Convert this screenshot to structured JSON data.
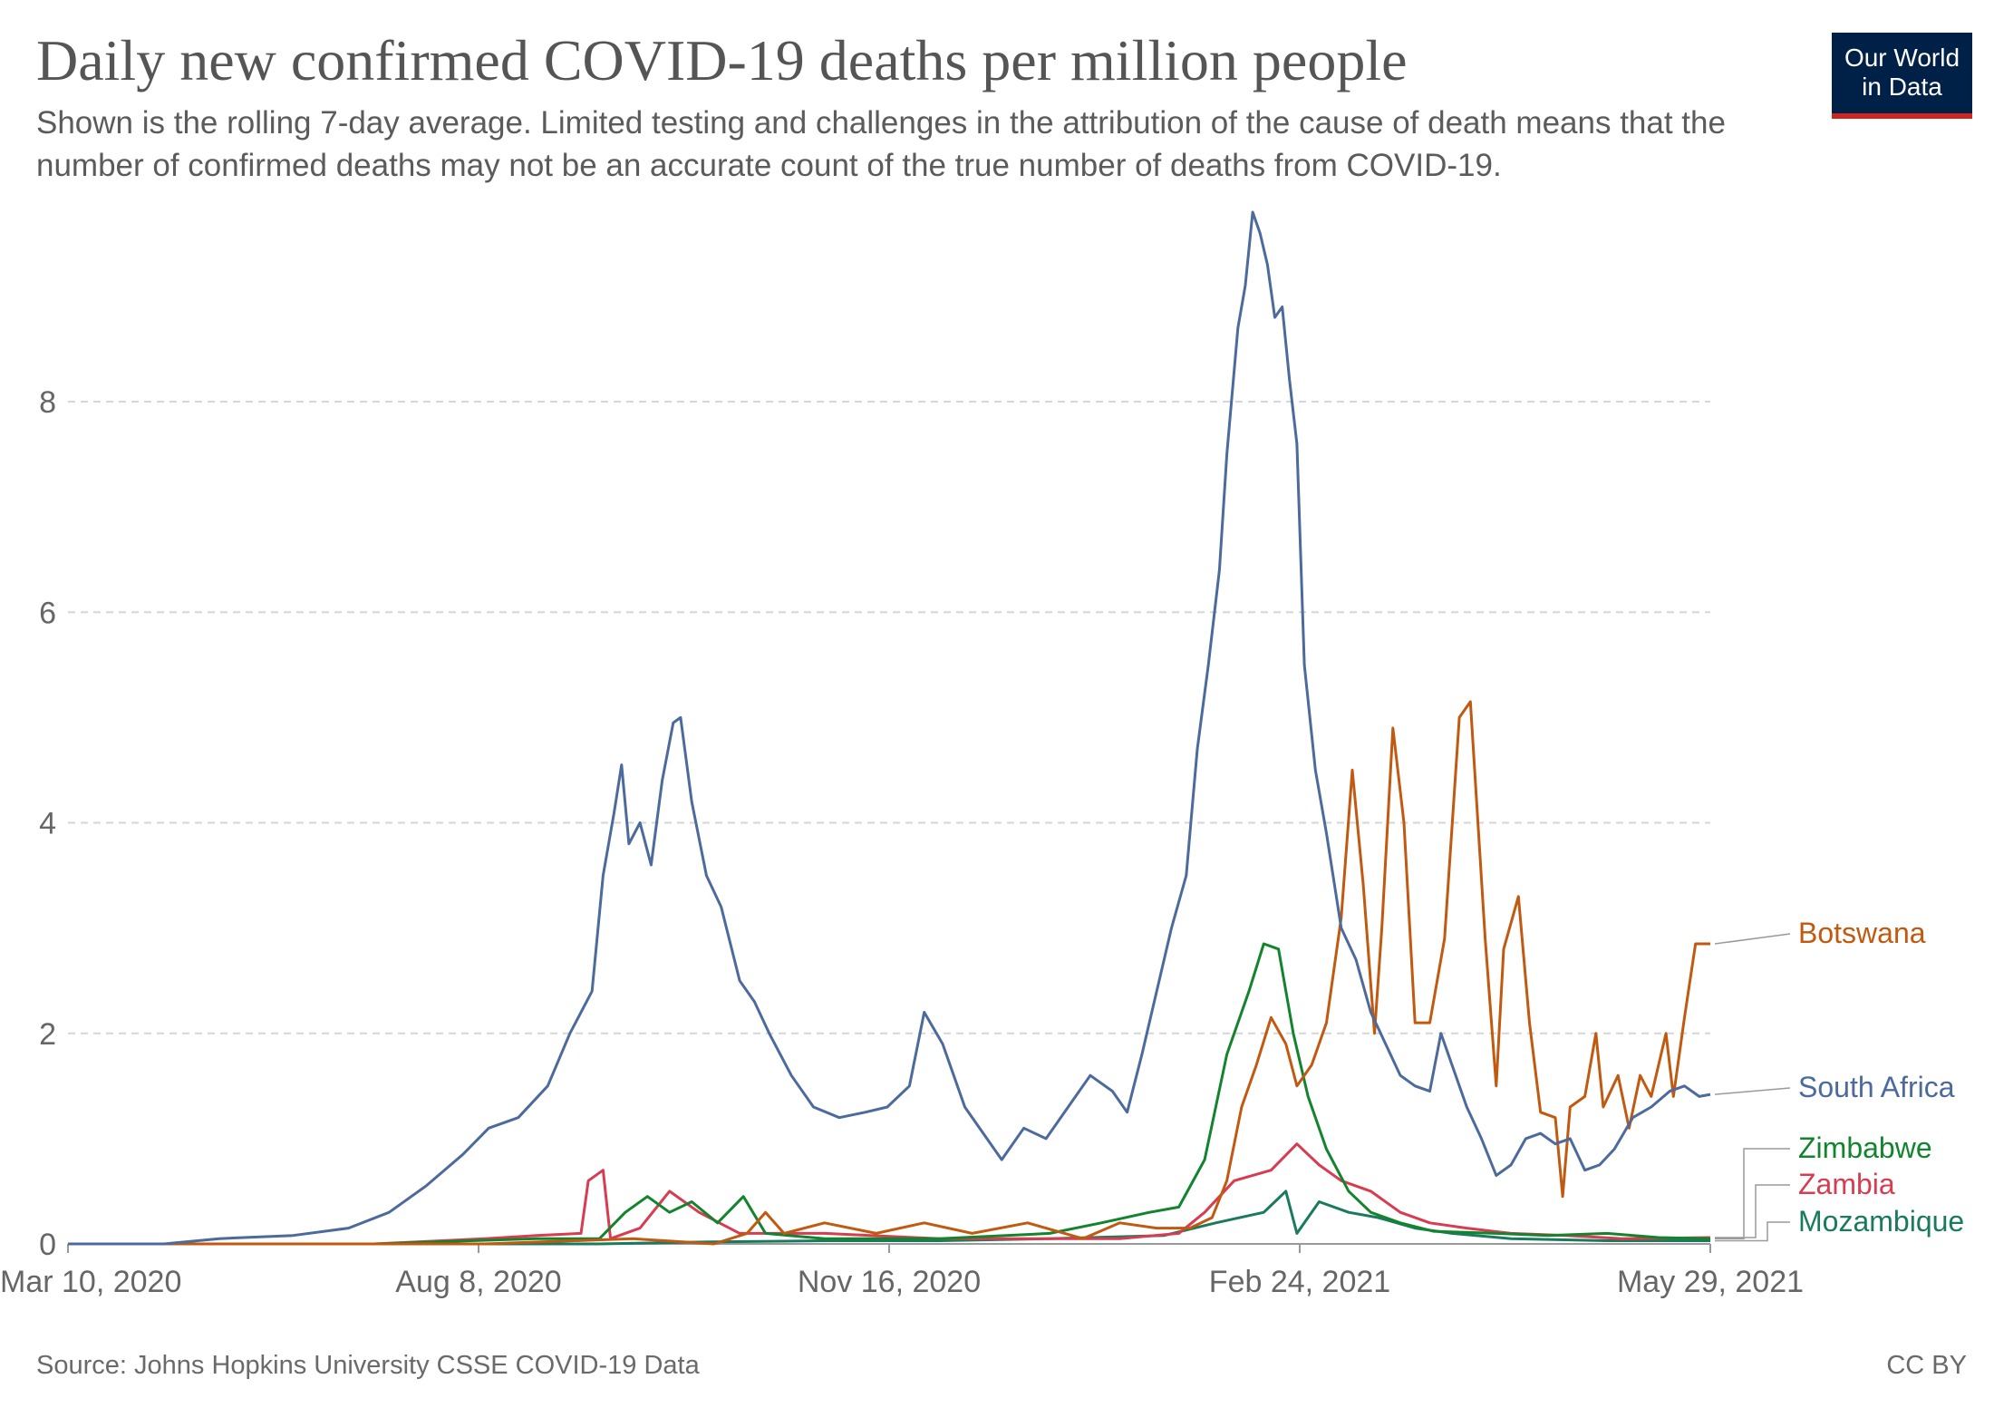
{
  "header": {
    "title": "Daily new confirmed COVID-19 deaths per million people",
    "subtitle": "Shown is the rolling 7-day average. Limited testing and challenges in the attribution of the cause of death means that the number of confirmed deaths may not be an accurate count of the true number of deaths from COVID-19."
  },
  "logo": {
    "line1": "Our World",
    "line2": "in Data",
    "bg_color": "#002147",
    "accent_color": "#ce261e"
  },
  "footer": {
    "source": "Source: Johns Hopkins University CSSE COVID-19 Data",
    "license": "CC BY"
  },
  "chart_data": {
    "type": "line",
    "title": "Daily new confirmed COVID-19 deaths per million people",
    "xlabel": "",
    "ylabel": "",
    "x_start": "2020-03-10",
    "x_end": "2021-05-29",
    "x_ticks": [
      "Mar 10, 2020",
      "Aug 8, 2020",
      "Nov 16, 2020",
      "Feb 24, 2021",
      "May 29, 2021"
    ],
    "y_ticks": [
      0,
      2,
      4,
      6,
      8
    ],
    "ylim": [
      0,
      9.8
    ],
    "grid": "horizontal dashed",
    "series": [
      {
        "name": "South Africa",
        "color": "#4c6a9c",
        "points": [
          [
            "2020-03-10",
            0
          ],
          [
            "2020-04-05",
            0
          ],
          [
            "2020-04-20",
            0.05
          ],
          [
            "2020-05-10",
            0.08
          ],
          [
            "2020-05-25",
            0.15
          ],
          [
            "2020-06-05",
            0.3
          ],
          [
            "2020-06-15",
            0.55
          ],
          [
            "2020-06-25",
            0.85
          ],
          [
            "2020-07-02",
            1.1
          ],
          [
            "2020-07-10",
            1.2
          ],
          [
            "2020-07-18",
            1.5
          ],
          [
            "2020-07-24",
            2.0
          ],
          [
            "2020-07-30",
            2.4
          ],
          [
            "2020-08-02",
            3.5
          ],
          [
            "2020-08-05",
            4.1
          ],
          [
            "2020-08-07",
            4.55
          ],
          [
            "2020-08-09",
            3.8
          ],
          [
            "2020-08-12",
            4.0
          ],
          [
            "2020-08-15",
            3.6
          ],
          [
            "2020-08-18",
            4.4
          ],
          [
            "2020-08-21",
            4.95
          ],
          [
            "2020-08-23",
            5.0
          ],
          [
            "2020-08-26",
            4.2
          ],
          [
            "2020-08-30",
            3.5
          ],
          [
            "2020-09-03",
            3.2
          ],
          [
            "2020-09-08",
            2.5
          ],
          [
            "2020-09-12",
            2.3
          ],
          [
            "2020-09-16",
            2.0
          ],
          [
            "2020-09-22",
            1.6
          ],
          [
            "2020-09-28",
            1.3
          ],
          [
            "2020-10-05",
            1.2
          ],
          [
            "2020-10-12",
            1.25
          ],
          [
            "2020-10-18",
            1.3
          ],
          [
            "2020-10-24",
            1.5
          ],
          [
            "2020-10-28",
            2.2
          ],
          [
            "2020-11-02",
            1.9
          ],
          [
            "2020-11-08",
            1.3
          ],
          [
            "2020-11-14",
            1.0
          ],
          [
            "2020-11-18",
            0.8
          ],
          [
            "2020-11-24",
            1.1
          ],
          [
            "2020-11-30",
            1.0
          ],
          [
            "2020-12-06",
            1.3
          ],
          [
            "2020-12-12",
            1.6
          ],
          [
            "2020-12-18",
            1.45
          ],
          [
            "2020-12-22",
            1.25
          ],
          [
            "2020-12-26",
            1.8
          ],
          [
            "2020-12-30",
            2.4
          ],
          [
            "2021-01-03",
            3.0
          ],
          [
            "2021-01-07",
            3.5
          ],
          [
            "2021-01-10",
            4.7
          ],
          [
            "2021-01-13",
            5.5
          ],
          [
            "2021-01-16",
            6.4
          ],
          [
            "2021-01-18",
            7.5
          ],
          [
            "2021-01-21",
            8.7
          ],
          [
            "2021-01-23",
            9.1
          ],
          [
            "2021-01-25",
            9.8
          ],
          [
            "2021-01-27",
            9.6
          ],
          [
            "2021-01-29",
            9.3
          ],
          [
            "2021-01-31",
            8.8
          ],
          [
            "2021-02-02",
            8.9
          ],
          [
            "2021-02-04",
            8.2
          ],
          [
            "2021-02-06",
            7.6
          ],
          [
            "2021-02-08",
            5.5
          ],
          [
            "2021-02-11",
            4.5
          ],
          [
            "2021-02-14",
            3.9
          ],
          [
            "2021-02-18",
            3.0
          ],
          [
            "2021-02-22",
            2.7
          ],
          [
            "2021-02-26",
            2.2
          ],
          [
            "2021-03-02",
            1.9
          ],
          [
            "2021-03-06",
            1.6
          ],
          [
            "2021-03-10",
            1.5
          ],
          [
            "2021-03-14",
            1.45
          ],
          [
            "2021-03-17",
            2.0
          ],
          [
            "2021-03-20",
            1.7
          ],
          [
            "2021-03-24",
            1.3
          ],
          [
            "2021-03-28",
            1.0
          ],
          [
            "2021-04-01",
            0.65
          ],
          [
            "2021-04-05",
            0.75
          ],
          [
            "2021-04-09",
            1.0
          ],
          [
            "2021-04-13",
            1.05
          ],
          [
            "2021-04-17",
            0.95
          ],
          [
            "2021-04-21",
            1.0
          ],
          [
            "2021-04-25",
            0.7
          ],
          [
            "2021-04-29",
            0.75
          ],
          [
            "2021-05-03",
            0.9
          ],
          [
            "2021-05-08",
            1.2
          ],
          [
            "2021-05-13",
            1.3
          ],
          [
            "2021-05-18",
            1.45
          ],
          [
            "2021-05-22",
            1.5
          ],
          [
            "2021-05-26",
            1.4
          ],
          [
            "2021-05-29",
            1.42
          ]
        ]
      },
      {
        "name": "Botswana",
        "color": "#c15a10",
        "points": [
          [
            "2020-03-10",
            0
          ],
          [
            "2020-07-01",
            0
          ],
          [
            "2020-08-10",
            0.05
          ],
          [
            "2020-09-01",
            0
          ],
          [
            "2020-09-10",
            0.1
          ],
          [
            "2020-09-15",
            0.3
          ],
          [
            "2020-09-20",
            0.1
          ],
          [
            "2020-10-01",
            0.2
          ],
          [
            "2020-10-15",
            0.1
          ],
          [
            "2020-10-28",
            0.2
          ],
          [
            "2020-11-10",
            0.1
          ],
          [
            "2020-11-25",
            0.2
          ],
          [
            "2020-12-10",
            0.05
          ],
          [
            "2020-12-20",
            0.2
          ],
          [
            "2020-12-30",
            0.15
          ],
          [
            "2021-01-08",
            0.15
          ],
          [
            "2021-01-14",
            0.25
          ],
          [
            "2021-01-18",
            0.6
          ],
          [
            "2021-01-22",
            1.3
          ],
          [
            "2021-01-26",
            1.7
          ],
          [
            "2021-01-30",
            2.15
          ],
          [
            "2021-02-03",
            1.9
          ],
          [
            "2021-02-06",
            1.5
          ],
          [
            "2021-02-10",
            1.7
          ],
          [
            "2021-02-14",
            2.1
          ],
          [
            "2021-02-18",
            3.1
          ],
          [
            "2021-02-21",
            4.5
          ],
          [
            "2021-02-24",
            3.4
          ],
          [
            "2021-02-27",
            2.0
          ],
          [
            "2021-03-01",
            3.0
          ],
          [
            "2021-03-04",
            4.9
          ],
          [
            "2021-03-07",
            4.0
          ],
          [
            "2021-03-10",
            2.1
          ],
          [
            "2021-03-14",
            2.1
          ],
          [
            "2021-03-18",
            2.9
          ],
          [
            "2021-03-22",
            5.0
          ],
          [
            "2021-03-25",
            5.15
          ],
          [
            "2021-03-29",
            2.9
          ],
          [
            "2021-04-01",
            1.5
          ],
          [
            "2021-04-03",
            2.8
          ],
          [
            "2021-04-07",
            3.3
          ],
          [
            "2021-04-10",
            2.1
          ],
          [
            "2021-04-13",
            1.25
          ],
          [
            "2021-04-17",
            1.2
          ],
          [
            "2021-04-19",
            0.45
          ],
          [
            "2021-04-21",
            1.3
          ],
          [
            "2021-04-25",
            1.4
          ],
          [
            "2021-04-28",
            2.0
          ],
          [
            "2021-04-30",
            1.3
          ],
          [
            "2021-05-04",
            1.6
          ],
          [
            "2021-05-07",
            1.1
          ],
          [
            "2021-05-10",
            1.6
          ],
          [
            "2021-05-13",
            1.4
          ],
          [
            "2021-05-17",
            2.0
          ],
          [
            "2021-05-19",
            1.4
          ],
          [
            "2021-05-22",
            2.15
          ],
          [
            "2021-05-25",
            2.85
          ],
          [
            "2021-05-29",
            2.85
          ]
        ]
      },
      {
        "name": "Zimbabwe",
        "color": "#13842e",
        "points": [
          [
            "2020-03-10",
            0
          ],
          [
            "2020-06-01",
            0
          ],
          [
            "2020-07-15",
            0.05
          ],
          [
            "2020-08-01",
            0.05
          ],
          [
            "2020-08-08",
            0.3
          ],
          [
            "2020-08-14",
            0.45
          ],
          [
            "2020-08-20",
            0.3
          ],
          [
            "2020-08-26",
            0.4
          ],
          [
            "2020-09-02",
            0.2
          ],
          [
            "2020-09-09",
            0.45
          ],
          [
            "2020-09-15",
            0.1
          ],
          [
            "2020-10-01",
            0.05
          ],
          [
            "2020-11-01",
            0.05
          ],
          [
            "2020-12-01",
            0.1
          ],
          [
            "2020-12-15",
            0.2
          ],
          [
            "2020-12-28",
            0.3
          ],
          [
            "2021-01-05",
            0.35
          ],
          [
            "2021-01-12",
            0.8
          ],
          [
            "2021-01-18",
            1.8
          ],
          [
            "2021-01-24",
            2.4
          ],
          [
            "2021-01-28",
            2.85
          ],
          [
            "2021-02-01",
            2.8
          ],
          [
            "2021-02-05",
            2.0
          ],
          [
            "2021-02-09",
            1.4
          ],
          [
            "2021-02-14",
            0.9
          ],
          [
            "2021-02-20",
            0.5
          ],
          [
            "2021-02-26",
            0.3
          ],
          [
            "2021-03-06",
            0.2
          ],
          [
            "2021-03-15",
            0.12
          ],
          [
            "2021-04-01",
            0.1
          ],
          [
            "2021-04-15",
            0.08
          ],
          [
            "2021-05-01",
            0.1
          ],
          [
            "2021-05-15",
            0.06
          ],
          [
            "2021-05-29",
            0.05
          ]
        ]
      },
      {
        "name": "Zambia",
        "color": "#d73c50",
        "points": [
          [
            "2020-03-10",
            0
          ],
          [
            "2020-06-01",
            0
          ],
          [
            "2020-07-01",
            0.05
          ],
          [
            "2020-07-15",
            0.08
          ],
          [
            "2020-07-27",
            0.1
          ],
          [
            "2020-07-29",
            0.6
          ],
          [
            "2020-08-02",
            0.7
          ],
          [
            "2020-08-04",
            0.05
          ],
          [
            "2020-08-12",
            0.15
          ],
          [
            "2020-08-20",
            0.5
          ],
          [
            "2020-08-28",
            0.3
          ],
          [
            "2020-09-08",
            0.1
          ],
          [
            "2020-10-01",
            0.1
          ],
          [
            "2020-11-01",
            0.05
          ],
          [
            "2020-12-01",
            0.05
          ],
          [
            "2020-12-20",
            0.05
          ],
          [
            "2021-01-05",
            0.1
          ],
          [
            "2021-01-12",
            0.3
          ],
          [
            "2021-01-20",
            0.6
          ],
          [
            "2021-01-30",
            0.7
          ],
          [
            "2021-02-06",
            0.95
          ],
          [
            "2021-02-12",
            0.75
          ],
          [
            "2021-02-18",
            0.6
          ],
          [
            "2021-02-26",
            0.5
          ],
          [
            "2021-03-06",
            0.3
          ],
          [
            "2021-03-14",
            0.2
          ],
          [
            "2021-03-24",
            0.15
          ],
          [
            "2021-04-05",
            0.1
          ],
          [
            "2021-04-20",
            0.08
          ],
          [
            "2021-05-05",
            0.05
          ],
          [
            "2021-05-29",
            0.06
          ]
        ]
      },
      {
        "name": "Mozambique",
        "color": "#1a7a5e",
        "points": [
          [
            "2020-03-10",
            0
          ],
          [
            "2020-08-01",
            0
          ],
          [
            "2020-09-01",
            0.02
          ],
          [
            "2020-10-01",
            0.03
          ],
          [
            "2020-11-01",
            0.03
          ],
          [
            "2020-12-01",
            0.05
          ],
          [
            "2021-01-01",
            0.08
          ],
          [
            "2021-01-15",
            0.2
          ],
          [
            "2021-01-28",
            0.3
          ],
          [
            "2021-02-03",
            0.5
          ],
          [
            "2021-02-06",
            0.1
          ],
          [
            "2021-02-12",
            0.4
          ],
          [
            "2021-02-20",
            0.3
          ],
          [
            "2021-02-28",
            0.25
          ],
          [
            "2021-03-10",
            0.15
          ],
          [
            "2021-03-20",
            0.1
          ],
          [
            "2021-04-05",
            0.05
          ],
          [
            "2021-05-01",
            0.03
          ],
          [
            "2021-05-29",
            0.03
          ]
        ]
      }
    ]
  }
}
